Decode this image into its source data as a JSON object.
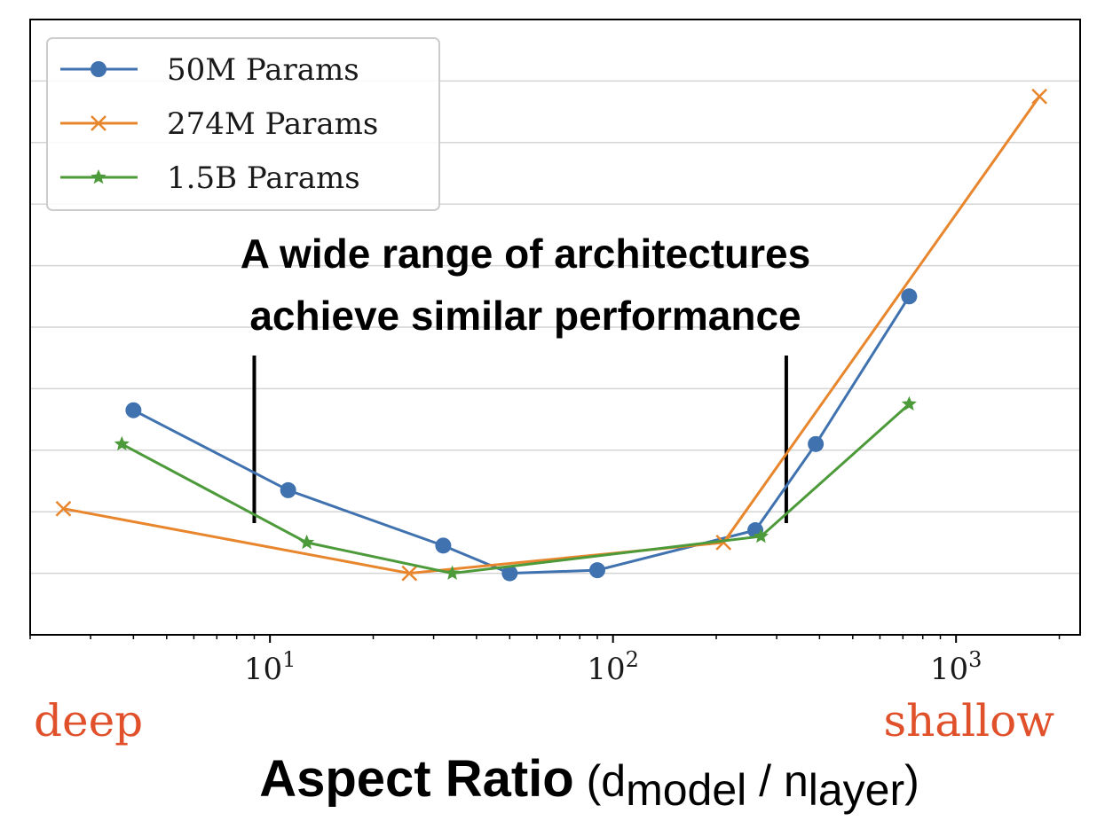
{
  "chart_data": {
    "type": "line",
    "xscale": "log",
    "xlim": [
      2.0,
      2300
    ],
    "ylim": [
      0,
      10
    ],
    "grid": "horizontal",
    "legend_position": "top-left",
    "x_tick_labels": [
      {
        "base": "10",
        "exp": "1",
        "value": 10
      },
      {
        "base": "10",
        "exp": "2",
        "value": 100
      },
      {
        "base": "10",
        "exp": "3",
        "value": 1000
      }
    ],
    "y_gridlines": [
      1,
      2,
      3,
      4,
      5,
      6,
      7,
      8,
      9,
      10
    ],
    "series": [
      {
        "name": "50M Params",
        "color": "#3f72af",
        "marker": "circle",
        "x": [
          4.0,
          11.3,
          32,
          50,
          90,
          260,
          390,
          730
        ],
        "y": [
          3.65,
          2.35,
          1.45,
          1.0,
          1.05,
          1.7,
          3.1,
          5.5
        ]
      },
      {
        "name": "274M Params",
        "color": "#e8862d",
        "marker": "x",
        "x": [
          2.5,
          25.5,
          210,
          1750
        ],
        "y": [
          2.05,
          1.0,
          1.5,
          8.75
        ]
      },
      {
        "name": "1.5B Params",
        "color": "#4c9a3a",
        "marker": "star",
        "x": [
          3.7,
          12.8,
          34,
          270,
          730
        ],
        "y": [
          3.1,
          1.5,
          1.0,
          1.6,
          3.75
        ]
      }
    ],
    "reference_lines_x": [
      9,
      320
    ]
  },
  "annotation": {
    "line1": "A wide range of architectures",
    "line2": "achieve similar performance"
  },
  "end_labels": {
    "left": "deep",
    "right": "shallow"
  },
  "xlabel": {
    "main": "Aspect Ratio",
    "open": " (d",
    "sub1": "model",
    "mid": " / n",
    "sub2": "layer",
    "close": ")"
  }
}
